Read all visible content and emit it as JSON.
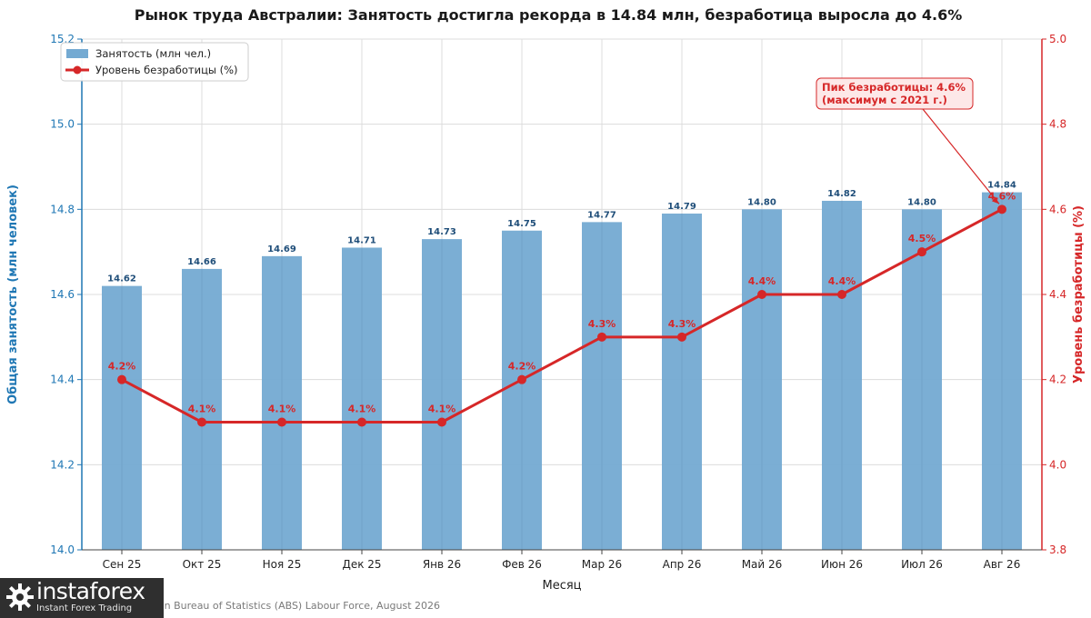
{
  "chart_data": {
    "type": "bar",
    "title": "Рынок труда Австралии: Занятость достигла рекорда в 14.84 млн, безработица выросла до 4.6%",
    "xlabel": "Месяц",
    "ylabel_left": "Общая занятость (млн человек)",
    "ylabel_right": "Уровень безработицы (%)",
    "categories": [
      "Сен 25",
      "Окт 25",
      "Ноя 25",
      "Дек 25",
      "Янв 26",
      "Фев 26",
      "Мар 26",
      "Апр 26",
      "Май 26",
      "Июн 26",
      "Июл 26",
      "Авг 26"
    ],
    "series": [
      {
        "name": "Занятость (млн чел.)",
        "type": "bar",
        "axis": "left",
        "color": "#74aad2",
        "values": [
          14.62,
          14.66,
          14.69,
          14.71,
          14.73,
          14.75,
          14.77,
          14.79,
          14.8,
          14.82,
          14.8,
          14.84
        ],
        "labels": [
          "14.62",
          "14.66",
          "14.69",
          "14.71",
          "14.73",
          "14.75",
          "14.77",
          "14.79",
          "14.80",
          "14.82",
          "14.80",
          "14.84"
        ]
      },
      {
        "name": "Уровень безработицы (%)",
        "type": "line",
        "axis": "right",
        "color": "#d62728",
        "values": [
          4.2,
          4.1,
          4.1,
          4.1,
          4.1,
          4.2,
          4.3,
          4.3,
          4.4,
          4.4,
          4.5,
          4.6
        ],
        "labels": [
          "4.2%",
          "4.1%",
          "4.1%",
          "4.1%",
          "4.1%",
          "4.2%",
          "4.3%",
          "4.3%",
          "4.4%",
          "4.4%",
          "4.5%",
          "4.6%"
        ]
      }
    ],
    "ylim_left": [
      14.0,
      15.2
    ],
    "yticks_left": [
      "14.0",
      "14.2",
      "14.4",
      "14.6",
      "14.8",
      "15.0",
      "15.2"
    ],
    "ylim_right": [
      3.8,
      5.0
    ],
    "yticks_right": [
      "3.8",
      "4.0",
      "4.2",
      "4.4",
      "4.6",
      "4.8",
      "5.0"
    ],
    "grid": true,
    "legend_position": "top-left",
    "annotation": {
      "lines": [
        "Пик безработицы: 4.6%",
        "(максимум с 2021 г.)"
      ],
      "category": "Авг 26",
      "value": 4.6
    },
    "colors": {
      "left_axis": "#1f77b4",
      "right_axis": "#d62728",
      "bar_label": "#1f4e79",
      "annotation_bg": "#fde8e8"
    }
  },
  "source": "Australian Bureau of Statistics (ABS) Labour Force, August 2026",
  "logo": {
    "text": "instaforex",
    "subtitle": "Instant Forex Trading"
  }
}
